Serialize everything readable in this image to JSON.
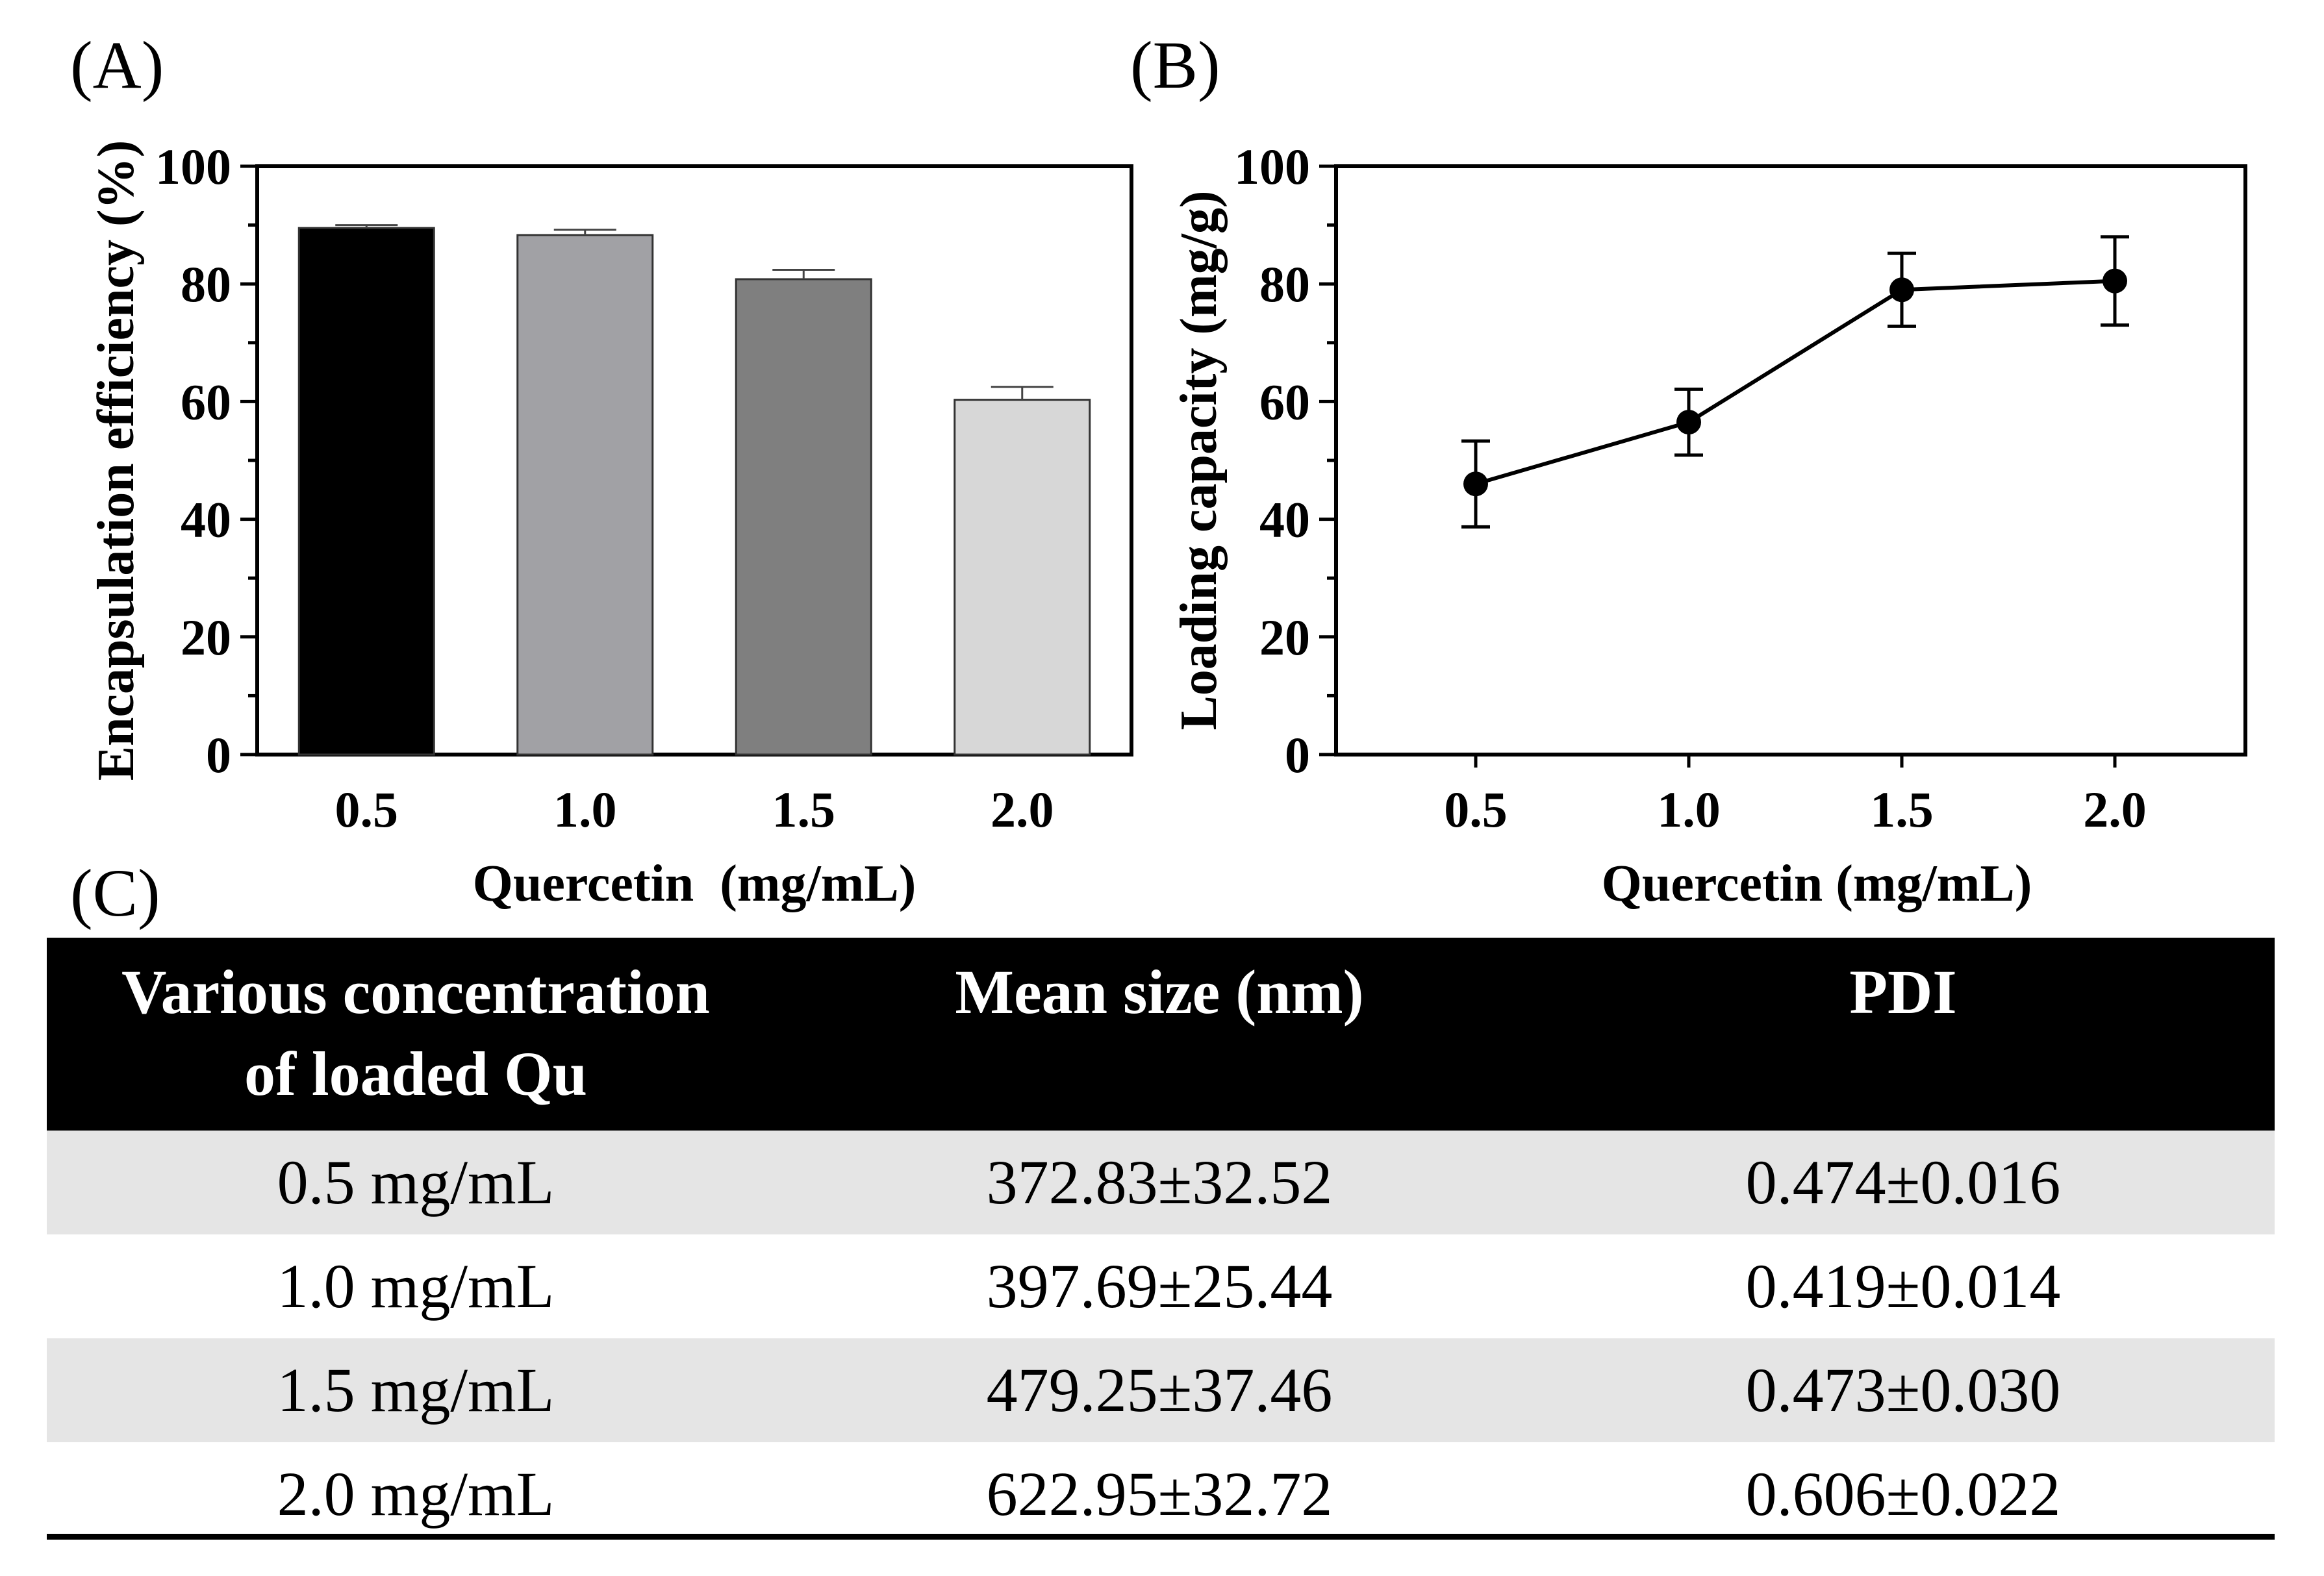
{
  "chart_data": [
    {
      "panel": "(A)",
      "type": "bar",
      "categories": [
        "0.5",
        "1.0",
        "1.5",
        "2.0"
      ],
      "values": [
        89.5,
        88.3,
        80.8,
        60.3
      ],
      "errors": [
        0.5,
        0.9,
        1.6,
        2.2
      ],
      "colors": [
        "#000000",
        "#a1a1a5",
        "#7f7f7f",
        "#d7d7d7"
      ],
      "xlabel": "Quercetin  (mg/mL)",
      "ylabel": "Encapsulation efficiency (%)",
      "ylim": [
        0,
        100
      ],
      "yticks": [
        "0",
        "20",
        "40",
        "60",
        "80",
        "100"
      ]
    },
    {
      "panel": "(B)",
      "type": "line",
      "x": [
        "0.5",
        "1.0",
        "1.5",
        "2.0"
      ],
      "y": [
        46,
        56.5,
        79,
        80.5
      ],
      "errors": [
        7.3,
        5.6,
        6.2,
        7.5
      ],
      "xlabel": "Quercetin (mg/mL)",
      "ylabel": "Loading capacity (mg/g)",
      "ylim": [
        0,
        100
      ],
      "yticks": [
        "0",
        "20",
        "40",
        "60",
        "80",
        "100"
      ]
    },
    {
      "panel": "(C)",
      "type": "table",
      "headers": [
        "Various concentration",
        "of loaded Qu",
        "Mean size (nm)",
        "PDI"
      ],
      "rows": [
        [
          "0.5 mg/mL",
          "372.83±32.52",
          "0.474±0.016"
        ],
        [
          "1.0 mg/mL",
          "397.69±25.44",
          "0.419±0.014"
        ],
        [
          "1.5 mg/mL",
          "479.25±37.46",
          "0.473±0.030"
        ],
        [
          "2.0 mg/mL",
          "622.95±32.72",
          "0.606±0.022"
        ]
      ]
    }
  ]
}
